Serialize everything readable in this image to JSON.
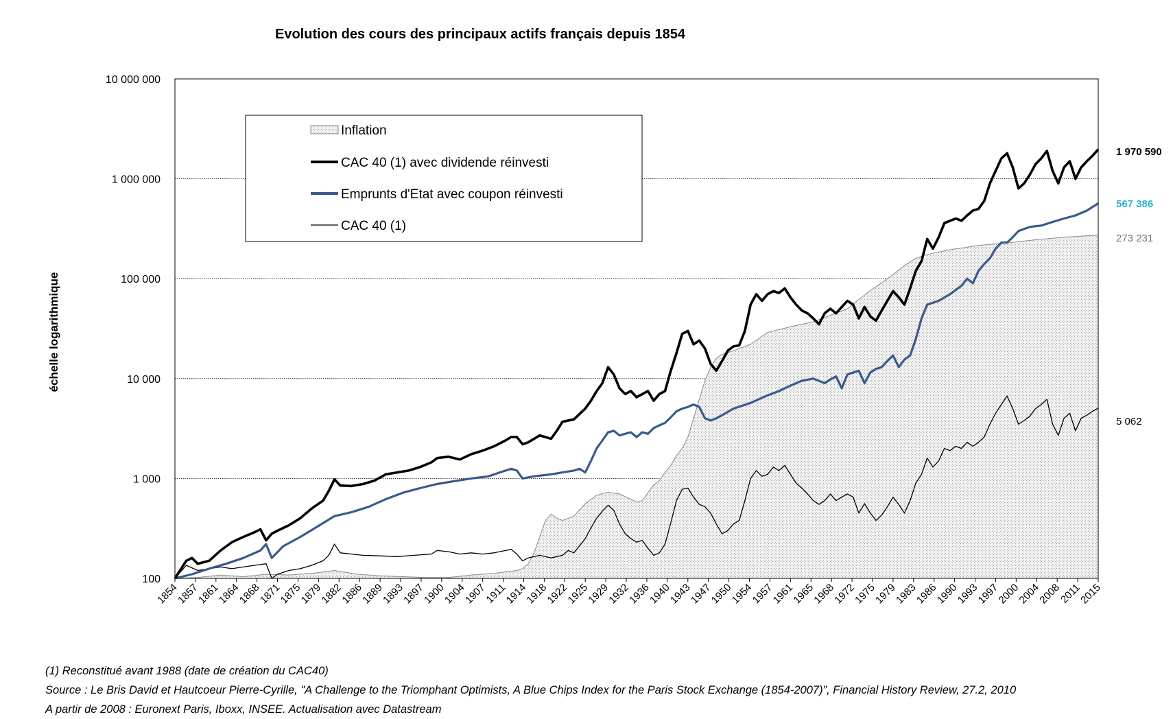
{
  "chart_data": {
    "type": "line",
    "title": "Evolution des cours des principaux actifs français depuis 1854",
    "ylabel": "échelle logarithmique",
    "xlabel": "",
    "y_scale": "log",
    "ylim": [
      100,
      10000000
    ],
    "xlim": [
      1854,
      2016
    ],
    "grid": "horizontal dotted",
    "legend_placement": "top-left",
    "y_tick_labels": [
      "100",
      "1 000",
      "10 000",
      "100 000",
      "1 000 000",
      "10 000 000"
    ],
    "x_tick_labels": [
      "1854",
      "1857",
      "1861",
      "1864",
      "1868",
      "1871",
      "1875",
      "1879",
      "1882",
      "1886",
      "1889",
      "1893",
      "1897",
      "1900",
      "1904",
      "1907",
      "1911",
      "1914",
      "1918",
      "1922",
      "1925",
      "1929",
      "1932",
      "1936",
      "1940",
      "1943",
      "1947",
      "1950",
      "1954",
      "1957",
      "1961",
      "1965",
      "1968",
      "1972",
      "1975",
      "1979",
      "1983",
      "1986",
      "1990",
      "1993",
      "1997",
      "2000",
      "2004",
      "2008",
      "2011",
      "2015"
    ],
    "series": [
      {
        "name": "Inflation",
        "style": "area",
        "color": "#888888",
        "end_label": "273 231",
        "end_label_color": "#777777",
        "x": [
          1854,
          1858,
          1862,
          1866,
          1870,
          1874,
          1878,
          1882,
          1886,
          1890,
          1894,
          1898,
          1902,
          1906,
          1910,
          1913,
          1914,
          1915,
          1916,
          1917,
          1918,
          1919,
          1920,
          1921,
          1922,
          1924,
          1926,
          1928,
          1930,
          1932,
          1934,
          1935,
          1936,
          1937,
          1938,
          1939,
          1940,
          1941,
          1942,
          1943,
          1944,
          1945,
          1946,
          1947,
          1948,
          1949,
          1950,
          1952,
          1955,
          1958,
          1960,
          1963,
          1966,
          1969,
          1972,
          1974,
          1976,
          1978,
          1980,
          1982,
          1984,
          1986,
          1990,
          1995,
          2000,
          2005,
          2010,
          2016
        ],
        "y": [
          100,
          102,
          108,
          104,
          110,
          108,
          112,
          120,
          110,
          106,
          104,
          102,
          102,
          108,
          112,
          118,
          120,
          125,
          140,
          180,
          260,
          380,
          440,
          400,
          380,
          420,
          560,
          680,
          730,
          700,
          620,
          580,
          600,
          720,
          860,
          950,
          1150,
          1350,
          1700,
          2000,
          2600,
          4000,
          6200,
          9500,
          13000,
          16000,
          17500,
          19000,
          22000,
          29000,
          31000,
          34000,
          37000,
          43000,
          50000,
          62000,
          76000,
          91000,
          110000,
          135000,
          160000,
          175000,
          195000,
          215000,
          228000,
          245000,
          260000,
          273231
        ]
      },
      {
        "name": "CAC 40 (1) avec dividende réinvesti",
        "style": "line",
        "color": "#000000",
        "end_label": "1 970 590",
        "end_label_color": "#000000",
        "x": [
          1854,
          1856,
          1857,
          1858,
          1860,
          1862,
          1864,
          1866,
          1868,
          1869,
          1870,
          1871,
          1872,
          1874,
          1876,
          1878,
          1880,
          1881,
          1882,
          1883,
          1885,
          1887,
          1889,
          1891,
          1893,
          1895,
          1897,
          1899,
          1900,
          1902,
          1904,
          1906,
          1908,
          1910,
          1912,
          1913,
          1914,
          1915,
          1916,
          1918,
          1920,
          1921,
          1922,
          1924,
          1926,
          1927,
          1928,
          1929,
          1930,
          1931,
          1932,
          1933,
          1934,
          1935,
          1936,
          1937,
          1938,
          1939,
          1940,
          1941,
          1942,
          1943,
          1944,
          1945,
          1946,
          1947,
          1948,
          1949,
          1950,
          1951,
          1952,
          1953,
          1954,
          1955,
          1956,
          1957,
          1958,
          1959,
          1960,
          1961,
          1962,
          1963,
          1964,
          1965,
          1966,
          1967,
          1968,
          1969,
          1970,
          1971,
          1972,
          1973,
          1974,
          1975,
          1976,
          1977,
          1978,
          1979,
          1980,
          1981,
          1982,
          1983,
          1984,
          1985,
          1986,
          1987,
          1988,
          1989,
          1990,
          1991,
          1992,
          1993,
          1994,
          1995,
          1996,
          1997,
          1998,
          1999,
          2000,
          2001,
          2002,
          2003,
          2004,
          2005,
          2006,
          2007,
          2008,
          2009,
          2010,
          2011,
          2012,
          2013,
          2014,
          2015,
          2016
        ],
        "y": [
          100,
          150,
          160,
          140,
          150,
          190,
          230,
          260,
          290,
          310,
          240,
          280,
          300,
          340,
          400,
          500,
          600,
          750,
          980,
          850,
          840,
          880,
          950,
          1100,
          1150,
          1200,
          1300,
          1450,
          1600,
          1650,
          1550,
          1750,
          1900,
          2100,
          2400,
          2600,
          2600,
          2200,
          2300,
          2700,
          2500,
          3000,
          3700,
          3900,
          5000,
          6000,
          7500,
          9000,
          13000,
          11000,
          8000,
          7000,
          7500,
          6500,
          7000,
          7500,
          6000,
          7000,
          7500,
          12000,
          18000,
          28000,
          30000,
          22000,
          24000,
          20000,
          14000,
          12000,
          15000,
          19000,
          21000,
          21500,
          30000,
          55000,
          70000,
          60000,
          70000,
          75000,
          72000,
          80000,
          65000,
          55000,
          48000,
          45000,
          40000,
          35000,
          45000,
          50000,
          45000,
          52000,
          60000,
          55000,
          40000,
          52000,
          42000,
          38000,
          48000,
          60000,
          75000,
          65000,
          55000,
          80000,
          120000,
          150000,
          250000,
          200000,
          260000,
          360000,
          380000,
          400000,
          380000,
          430000,
          480000,
          500000,
          600000,
          900000,
          1200000,
          1600000,
          1800000,
          1300000,
          800000,
          900000,
          1100000,
          1400000,
          1600000,
          1900000,
          1200000,
          900000,
          1300000,
          1500000,
          1000000,
          1300000,
          1500000,
          1700000,
          1970590
        ]
      },
      {
        "name": "Emprunts d'Etat avec coupon réinvesti",
        "style": "line",
        "color": "#3a5a8c",
        "end_label": "567 386",
        "end_label_color": "#2ab7c7",
        "x": [
          1854,
          1857,
          1860,
          1863,
          1866,
          1869,
          1870,
          1871,
          1873,
          1876,
          1879,
          1882,
          1885,
          1888,
          1891,
          1894,
          1897,
          1900,
          1903,
          1906,
          1909,
          1911,
          1913,
          1914,
          1915,
          1917,
          1920,
          1922,
          1924,
          1925,
          1926,
          1927,
          1928,
          1929,
          1930,
          1931,
          1932,
          1933,
          1934,
          1935,
          1936,
          1937,
          1938,
          1939,
          1940,
          1941,
          1942,
          1943,
          1944,
          1945,
          1946,
          1947,
          1948,
          1949,
          1950,
          1952,
          1955,
          1958,
          1960,
          1962,
          1964,
          1966,
          1968,
          1969,
          1970,
          1971,
          1972,
          1974,
          1975,
          1976,
          1977,
          1978,
          1979,
          1980,
          1981,
          1982,
          1983,
          1984,
          1985,
          1986,
          1988,
          1990,
          1992,
          1993,
          1994,
          1995,
          1996,
          1997,
          1998,
          1999,
          2000,
          2001,
          2002,
          2004,
          2006,
          2008,
          2010,
          2012,
          2014,
          2016
        ],
        "y": [
          100,
          110,
          125,
          140,
          160,
          190,
          220,
          160,
          210,
          260,
          330,
          420,
          460,
          520,
          620,
          720,
          800,
          880,
          940,
          1000,
          1050,
          1150,
          1250,
          1200,
          1000,
          1050,
          1100,
          1150,
          1200,
          1250,
          1150,
          1500,
          2000,
          2400,
          2900,
          3000,
          2700,
          2800,
          2900,
          2600,
          2900,
          2800,
          3200,
          3400,
          3600,
          4100,
          4700,
          5000,
          5200,
          5500,
          5200,
          4000,
          3800,
          4000,
          4300,
          5000,
          5700,
          6800,
          7500,
          8500,
          9500,
          10000,
          9000,
          9800,
          10500,
          8000,
          11000,
          12000,
          9000,
          11500,
          12500,
          13000,
          15000,
          17000,
          13000,
          15500,
          17000,
          25000,
          40000,
          55000,
          60000,
          70000,
          85000,
          100000,
          90000,
          120000,
          140000,
          160000,
          200000,
          230000,
          230000,
          260000,
          300000,
          330000,
          340000,
          370000,
          400000,
          430000,
          480000,
          567386
        ]
      },
      {
        "name": "CAC 40 (1)",
        "style": "line",
        "color": "#000000",
        "end_label": "5 062",
        "end_label_color": "#000000",
        "x": [
          1854,
          1856,
          1858,
          1860,
          1862,
          1864,
          1866,
          1868,
          1870,
          1871,
          1872,
          1874,
          1876,
          1878,
          1880,
          1881,
          1882,
          1883,
          1885,
          1887,
          1890,
          1893,
          1896,
          1899,
          1900,
          1902,
          1904,
          1906,
          1908,
          1910,
          1912,
          1913,
          1914,
          1915,
          1916,
          1918,
          1920,
          1922,
          1923,
          1924,
          1926,
          1927,
          1928,
          1929,
          1930,
          1931,
          1932,
          1933,
          1934,
          1935,
          1936,
          1937,
          1938,
          1939,
          1940,
          1941,
          1942,
          1943,
          1944,
          1945,
          1946,
          1947,
          1948,
          1949,
          1950,
          1951,
          1952,
          1953,
          1954,
          1955,
          1956,
          1957,
          1958,
          1959,
          1960,
          1961,
          1962,
          1963,
          1964,
          1965,
          1966,
          1967,
          1968,
          1969,
          1970,
          1971,
          1972,
          1973,
          1974,
          1975,
          1976,
          1977,
          1978,
          1979,
          1980,
          1981,
          1982,
          1983,
          1984,
          1985,
          1986,
          1987,
          1988,
          1989,
          1990,
          1991,
          1992,
          1993,
          1994,
          1995,
          1996,
          1997,
          1998,
          1999,
          2000,
          2001,
          2002,
          2003,
          2004,
          2005,
          2006,
          2007,
          2008,
          2009,
          2010,
          2011,
          2012,
          2013,
          2014,
          2015,
          2016
        ],
        "y": [
          100,
          135,
          120,
          125,
          130,
          125,
          130,
          135,
          140,
          100,
          110,
          120,
          125,
          135,
          150,
          170,
          220,
          180,
          175,
          170,
          168,
          165,
          170,
          175,
          190,
          185,
          175,
          180,
          175,
          180,
          190,
          195,
          175,
          150,
          160,
          170,
          160,
          170,
          190,
          180,
          250,
          320,
          400,
          470,
          540,
          480,
          350,
          280,
          250,
          230,
          240,
          200,
          170,
          180,
          220,
          360,
          600,
          780,
          800,
          650,
          550,
          520,
          450,
          350,
          280,
          300,
          350,
          380,
          600,
          1000,
          1200,
          1050,
          1100,
          1300,
          1200,
          1350,
          1100,
          900,
          800,
          700,
          600,
          550,
          600,
          700,
          600,
          650,
          700,
          650,
          450,
          560,
          450,
          380,
          430,
          520,
          650,
          550,
          450,
          600,
          900,
          1100,
          1600,
          1300,
          1500,
          2000,
          1900,
          2100,
          2000,
          2300,
          2100,
          2300,
          2600,
          3500,
          4500,
          5500,
          6700,
          5000,
          3500,
          3800,
          4200,
          5000,
          5500,
          6200,
          3500,
          2700,
          4000,
          4500,
          3000,
          4000,
          4300,
          4700,
          5062
        ]
      }
    ]
  },
  "notes": [
    "(1) Reconstitué avant 1988 (date de création du CAC40)",
    "Source : Le Bris David et Hautcoeur Pierre-Cyrille, \"A Challenge to the Triomphant Optimists, A Blue Chips Index for the Paris Stock Exchange (1854-2007)”, Financial History Review, 27.2, 2010",
    "A partir de 2008 : Euronext Paris, Iboxx, INSEE. Actualisation avec Datastream"
  ]
}
